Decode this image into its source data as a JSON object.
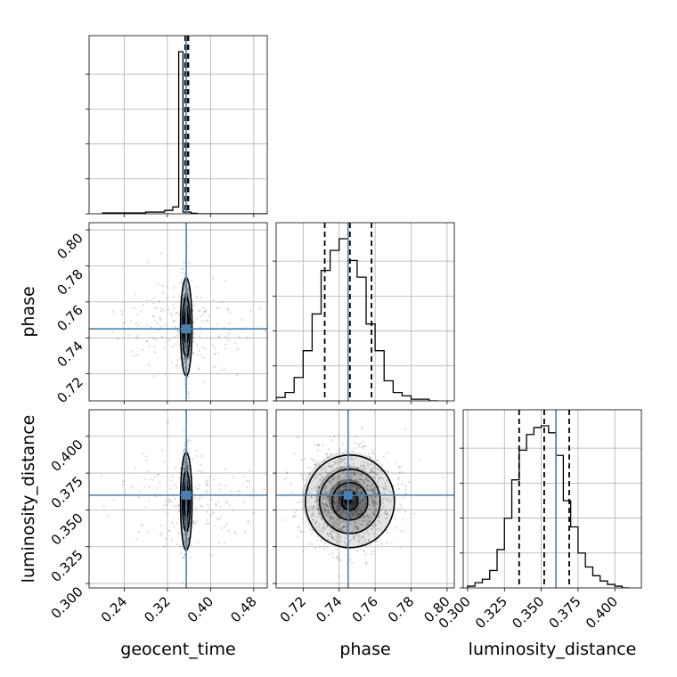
{
  "chart_data": {
    "type": "corner",
    "parameters": [
      "geocent_time",
      "phase",
      "luminosity_distance"
    ],
    "truths": {
      "geocent_time": 0.355,
      "phase": 0.745,
      "luminosity_distance": 0.36
    },
    "axes": {
      "geocent_time": {
        "label": "geocent_time",
        "range": [
          0.175,
          0.505
        ],
        "ticks": [
          "0.24",
          "0.32",
          "0.40",
          "0.48"
        ],
        "tick_values": [
          0.24,
          0.32,
          0.4,
          0.48
        ]
      },
      "phase": {
        "label": "phase",
        "range": [
          0.705,
          0.804
        ],
        "ticks": [
          "0.72",
          "0.74",
          "0.76",
          "0.78",
          "0.80"
        ],
        "tick_values": [
          0.72,
          0.74,
          0.76,
          0.78,
          0.8
        ]
      },
      "luminosity_distance": {
        "label": "luminosity_distance",
        "range": [
          0.297,
          0.418
        ],
        "ticks": [
          "0.300",
          "0.325",
          "0.350",
          "0.375",
          "0.400"
        ],
        "tick_values": [
          0.3,
          0.325,
          0.35,
          0.375,
          0.4
        ]
      }
    },
    "histograms": {
      "geocent_time": {
        "quantiles": [
          0.353,
          0.356,
          0.359
        ],
        "bin_edges": [
          0.2,
          0.28,
          0.315,
          0.33,
          0.341,
          0.349,
          0.364,
          0.375,
          0.505
        ],
        "counts": [
          0.005,
          0.01,
          0.02,
          0.04,
          0.95,
          0.01,
          0.003,
          0.0
        ]
      },
      "phase": {
        "quantiles": [
          0.732,
          0.746,
          0.758
        ],
        "bin_edges": [
          0.705,
          0.71,
          0.715,
          0.72,
          0.725,
          0.73,
          0.735,
          0.74,
          0.745,
          0.75,
          0.755,
          0.76,
          0.765,
          0.77,
          0.775,
          0.78,
          0.785,
          0.79,
          0.795
        ],
        "counts": [
          0.02,
          0.05,
          0.14,
          0.3,
          0.52,
          0.78,
          0.9,
          0.97,
          0.84,
          0.74,
          0.46,
          0.3,
          0.12,
          0.05,
          0.03,
          0.01,
          0.01,
          0.0
        ]
      },
      "luminosity_distance": {
        "quantiles": [
          0.335,
          0.352,
          0.369
        ],
        "bin_edges": [
          0.3,
          0.305,
          0.31,
          0.315,
          0.32,
          0.325,
          0.33,
          0.335,
          0.34,
          0.345,
          0.35,
          0.355,
          0.36,
          0.365,
          0.37,
          0.375,
          0.38,
          0.385,
          0.39,
          0.395,
          0.4,
          0.405,
          0.41
        ],
        "counts": [
          0.01,
          0.03,
          0.05,
          0.1,
          0.22,
          0.4,
          0.62,
          0.79,
          0.88,
          0.92,
          0.93,
          0.89,
          0.76,
          0.5,
          0.35,
          0.2,
          0.12,
          0.07,
          0.04,
          0.02,
          0.01,
          0.0
        ]
      }
    },
    "grid": true
  }
}
